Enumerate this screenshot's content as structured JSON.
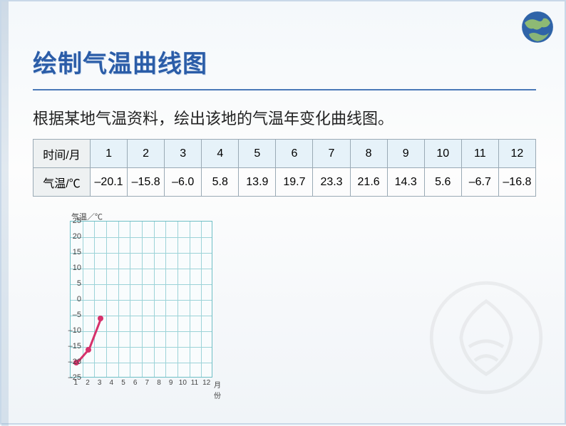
{
  "title": "绘制气温曲线图",
  "subtitle": "根据某地气温资料，绘出该地的气温年变化曲线图。",
  "table": {
    "row1_header": "时间/月",
    "row2_header": "气温/℃",
    "months": [
      "1",
      "2",
      "3",
      "4",
      "5",
      "6",
      "7",
      "8",
      "9",
      "10",
      "11",
      "12"
    ],
    "temps": [
      "–20.1",
      "–15.8",
      "–6.0",
      "5.8",
      "13.9",
      "19.7",
      "23.3",
      "21.6",
      "14.3",
      "5.6",
      "–6.7",
      "–16.8"
    ]
  },
  "chart": {
    "type": "line",
    "axis_title": "气温／℃",
    "x_unit": "月份",
    "ymin": -25,
    "ymax": 25,
    "ytick_step": 5,
    "xvals": [
      1,
      2,
      3,
      4,
      5,
      6,
      7,
      8,
      9,
      10,
      11,
      12
    ],
    "plot_bg": "#f9fcfd",
    "border_color": "#6fbfc6",
    "grid_color": "#9cd3d8",
    "line_color": "#d6316b",
    "marker_color": "#d6316b",
    "marker_size": 8,
    "points": [
      {
        "x": 1,
        "y": -20.1
      },
      {
        "x": 2,
        "y": -15.8
      },
      {
        "x": 3,
        "y": -6.0
      }
    ]
  },
  "colors": {
    "title_color": "#2b5da8",
    "title_underline": "#4a79b8",
    "table_header_bg": "#e6f2f9",
    "table_rowhdr_bg": "#eef1f2",
    "table_border": "#9aaab5"
  }
}
